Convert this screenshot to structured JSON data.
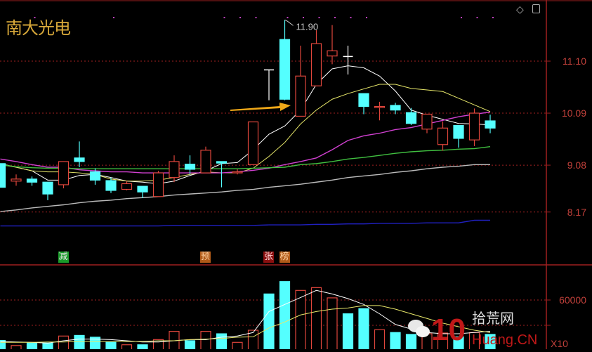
{
  "header": {
    "title": "南大光电",
    "icons": [
      "diamond-icon",
      "window-icon"
    ]
  },
  "colors": {
    "up": "#e0463c",
    "down": "#54ffff",
    "ma5": "#ffffff",
    "ma10": "#e8e86a",
    "ma20": "#d040d0",
    "ma30": "#40c040",
    "ma60": "#bbbbbb",
    "long_ma": "#2020c0",
    "grid": "#a02020",
    "axis_text": "#c0403a",
    "arrow": "#f0a818",
    "title": "#d9a93a"
  },
  "markers": [
    {
      "index": 4,
      "text": "减",
      "bg": "#1a9a2a",
      "fg": "#e0e0e0"
    },
    {
      "index": 13,
      "text": "预",
      "bg": "#b05a18",
      "fg": "#ffd0a0"
    },
    {
      "index": 17,
      "text": "张",
      "bg": "#8a1010",
      "fg": "#ffd0d0"
    },
    {
      "index": 18,
      "text": "榜",
      "bg": "#b05a18",
      "fg": "#ffd0a0"
    }
  ],
  "watermark": {
    "text": "10 拾荒网 Huang.CN",
    "icon": "wechat-icon"
  },
  "chart_data": [
    {
      "type": "candlestick",
      "ylim": [
        7.75,
        12.3
      ],
      "yticks": [
        11.1,
        10.09,
        9.08,
        8.17
      ],
      "ytick_labels": [
        "11.10",
        "10.09",
        "9.08",
        "8.17"
      ],
      "grid": true,
      "high_annotation": {
        "index": 18,
        "text": "11.90"
      },
      "candles": [
        {
          "o": 9.11,
          "h": 9.11,
          "l": 8.65,
          "c": 8.65
        },
        {
          "o": 8.77,
          "h": 8.9,
          "l": 8.68,
          "c": 8.81
        },
        {
          "o": 8.81,
          "h": 8.86,
          "l": 8.68,
          "c": 8.75
        },
        {
          "o": 8.75,
          "h": 8.75,
          "l": 8.4,
          "c": 8.52
        },
        {
          "o": 8.7,
          "h": 9.15,
          "l": 8.63,
          "c": 9.15
        },
        {
          "o": 9.22,
          "h": 9.54,
          "l": 9.04,
          "c": 9.15
        },
        {
          "o": 8.95,
          "h": 9.02,
          "l": 8.7,
          "c": 8.79
        },
        {
          "o": 8.78,
          "h": 8.84,
          "l": 8.54,
          "c": 8.59
        },
        {
          "o": 8.61,
          "h": 8.77,
          "l": 8.59,
          "c": 8.72
        },
        {
          "o": 8.67,
          "h": 8.67,
          "l": 8.44,
          "c": 8.56
        },
        {
          "o": 8.47,
          "h": 8.97,
          "l": 8.47,
          "c": 8.93
        },
        {
          "o": 8.84,
          "h": 9.27,
          "l": 8.75,
          "c": 9.15
        },
        {
          "o": 9.1,
          "h": 9.27,
          "l": 8.9,
          "c": 9.0
        },
        {
          "o": 8.93,
          "h": 9.44,
          "l": 8.93,
          "c": 9.37
        },
        {
          "o": 9.15,
          "h": 9.15,
          "l": 8.65,
          "c": 9.12
        },
        {
          "o": 8.93,
          "h": 9.0,
          "l": 8.9,
          "c": 8.95
        },
        {
          "o": 9.09,
          "h": 9.92,
          "l": 9.09,
          "c": 9.92
        },
        {
          "o": 10.93,
          "h": 10.93,
          "l": 10.34,
          "c": 10.93
        },
        {
          "o": 11.52,
          "h": 11.9,
          "l": 10.34,
          "c": 10.36
        },
        {
          "o": 10.03,
          "h": 11.4,
          "l": 10.03,
          "c": 10.81
        },
        {
          "o": 10.62,
          "h": 11.7,
          "l": 10.62,
          "c": 11.44
        },
        {
          "o": 11.2,
          "h": 11.8,
          "l": 11.04,
          "c": 11.3
        },
        {
          "o": 11.19,
          "h": 11.4,
          "l": 10.84,
          "c": 11.19
        },
        {
          "o": 10.47,
          "h": 10.47,
          "l": 10.07,
          "c": 10.22
        },
        {
          "o": 10.2,
          "h": 10.31,
          "l": 9.95,
          "c": 10.22
        },
        {
          "o": 10.24,
          "h": 10.29,
          "l": 10.07,
          "c": 10.15
        },
        {
          "o": 10.1,
          "h": 10.19,
          "l": 9.86,
          "c": 9.89
        },
        {
          "o": 9.78,
          "h": 10.07,
          "l": 9.7,
          "c": 10.07
        },
        {
          "o": 9.48,
          "h": 9.93,
          "l": 9.36,
          "c": 9.8
        },
        {
          "o": 9.85,
          "h": 9.85,
          "l": 9.42,
          "c": 9.6
        },
        {
          "o": 9.57,
          "h": 10.18,
          "l": 9.45,
          "c": 10.09
        },
        {
          "o": 9.94,
          "h": 10.06,
          "l": 9.7,
          "c": 9.8
        }
      ],
      "series": [
        {
          "key": "ma5",
          "values": [
            9.11,
            9.04,
            8.97,
            8.79,
            8.79,
            8.88,
            8.9,
            8.84,
            8.77,
            8.75,
            8.72,
            8.77,
            8.88,
            8.97,
            9.11,
            9.13,
            9.38,
            9.68,
            9.84,
            10.15,
            10.65,
            10.95,
            11.01,
            10.97,
            10.81,
            10.52,
            10.15,
            10.05,
            9.97,
            9.89,
            9.88,
            9.86
          ]
        },
        {
          "key": "ma10",
          "values": [
            9.09,
            9.04,
            8.97,
            8.95,
            8.95,
            8.93,
            8.9,
            8.81,
            8.77,
            8.77,
            8.79,
            8.84,
            8.9,
            8.95,
            8.93,
            8.93,
            9.02,
            9.25,
            9.52,
            9.88,
            10.15,
            10.36,
            10.47,
            10.56,
            10.65,
            10.65,
            10.57,
            10.54,
            10.51,
            10.38,
            10.25,
            10.12
          ]
        },
        {
          "key": "ma20",
          "values": [
            9.2,
            9.15,
            9.09,
            9.04,
            9.04,
            8.99,
            8.97,
            8.95,
            8.95,
            8.93,
            8.93,
            8.93,
            8.93,
            8.93,
            8.93,
            8.95,
            8.98,
            9.02,
            9.09,
            9.15,
            9.22,
            9.38,
            9.56,
            9.65,
            9.7,
            9.77,
            9.81,
            9.88,
            9.95,
            10.02,
            10.07,
            10.11
          ]
        },
        {
          "key": "ma30",
          "values": [
            9.09,
            9.05,
            9.03,
            9.02,
            9.02,
            9.01,
            9.01,
            9.01,
            9.01,
            9.01,
            9.01,
            9.01,
            9.01,
            9.01,
            9.01,
            9.01,
            9.02,
            9.03,
            9.04,
            9.09,
            9.11,
            9.15,
            9.2,
            9.23,
            9.27,
            9.31,
            9.34,
            9.36,
            9.37,
            9.39,
            9.4,
            9.44
          ]
        },
        {
          "key": "ma60",
          "values": [
            8.18,
            8.21,
            8.25,
            8.28,
            8.31,
            8.35,
            8.38,
            8.4,
            8.43,
            8.45,
            8.47,
            8.5,
            8.52,
            8.54,
            8.56,
            8.59,
            8.61,
            8.65,
            8.68,
            8.71,
            8.75,
            8.79,
            8.84,
            8.87,
            8.9,
            8.94,
            8.97,
            9.01,
            9.04,
            9.06,
            9.09,
            9.09
          ]
        },
        {
          "key": "long_ma",
          "values": [
            7.9,
            7.9,
            7.9,
            7.9,
            7.9,
            7.9,
            7.9,
            7.9,
            7.9,
            7.9,
            7.9,
            7.91,
            7.91,
            7.91,
            7.91,
            7.91,
            7.91,
            7.92,
            7.92,
            7.92,
            7.93,
            7.93,
            7.94,
            7.94,
            7.95,
            7.95,
            7.95,
            7.96,
            7.96,
            7.96,
            8.01,
            8.01
          ]
        }
      ]
    },
    {
      "type": "bar",
      "ylim": [
        0,
        80000
      ],
      "yticks": [
        60000,
        40000
      ],
      "ytick_labels": [
        "60000"
      ],
      "unit_label": "X10",
      "grid": true,
      "values": [
        28000,
        24000,
        26000,
        26000,
        31500,
        32000,
        30600,
        26500,
        24600,
        24600,
        28700,
        35200,
        27800,
        35200,
        33300,
        26500,
        36100,
        64800,
        74600,
        67600,
        69800,
        61700,
        49100,
        53200,
        36500,
        34300,
        32800,
        33300,
        33900,
        30900,
        34300,
        32800
      ],
      "series": [
        {
          "key": "ma5",
          "values": [
            27200,
            26800,
            26500,
            25900,
            27800,
            29100,
            29100,
            28700,
            27800,
            26800,
            26800,
            27800,
            28700,
            28700,
            30600,
            31500,
            34300,
            50900,
            56500,
            62000,
            67600,
            64800,
            61100,
            56500,
            49100,
            40700,
            37000,
            34300,
            33300,
            33300,
            34300,
            35200
          ]
        },
        {
          "key": "ma10",
          "values": [
            26500,
            26500,
            26500,
            26800,
            26800,
            27200,
            27200,
            27200,
            27200,
            27200,
            27800,
            27800,
            28700,
            29100,
            29600,
            30600,
            30900,
            37900,
            42600,
            48200,
            50900,
            52800,
            53700,
            55600,
            55600,
            52800,
            49100,
            45400,
            41700,
            38900,
            36100,
            34300
          ]
        }
      ]
    }
  ]
}
